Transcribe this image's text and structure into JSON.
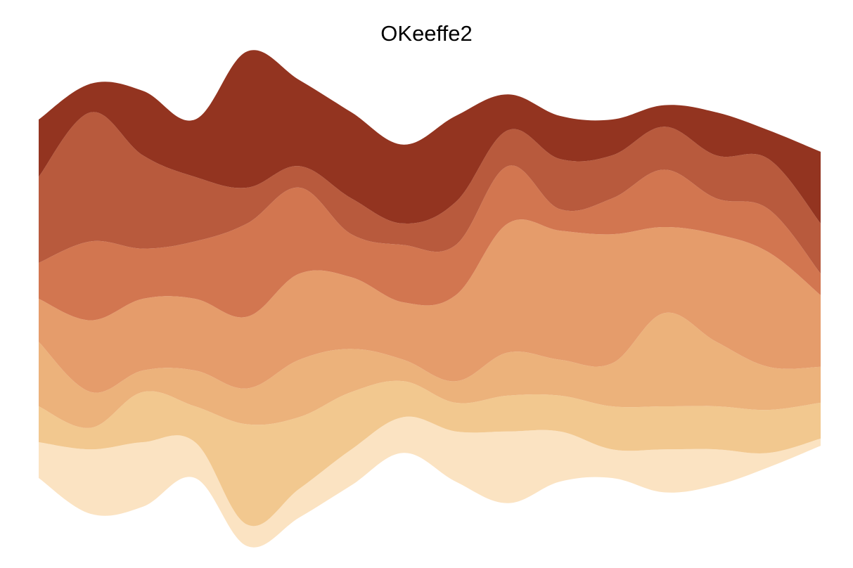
{
  "chart_data": {
    "type": "area",
    "title": "OKeeffe2",
    "layout": "streamgraph",
    "xlabel": "",
    "ylabel": "",
    "axes_visible": false,
    "grid": false,
    "legend": "none",
    "x": [
      0,
      1,
      2,
      3,
      4,
      5,
      6,
      7,
      8,
      9,
      10,
      11,
      12,
      13,
      14,
      15
    ],
    "series": [
      {
        "color": "#fbe3c2",
        "values": [
          5,
          9,
          9,
          5,
          3,
          4,
          5,
          5,
          7,
          10,
          7,
          4,
          6,
          5,
          2,
          1
        ]
      },
      {
        "color": "#f2c88f",
        "values": [
          5,
          3,
          7,
          5,
          14,
          10,
          8,
          5,
          4,
          5,
          5,
          6,
          6,
          6,
          6,
          5
        ]
      },
      {
        "color": "#ecb27b",
        "values": [
          9,
          5,
          3,
          5,
          5,
          8,
          6,
          3,
          3,
          6,
          5,
          6,
          13,
          9,
          6,
          5
        ]
      },
      {
        "color": "#e59c6b",
        "values": [
          6,
          10,
          10,
          10,
          10,
          12,
          10,
          8,
          12,
          18,
          18,
          18,
          12,
          15,
          16,
          10
        ]
      },
      {
        "color": "#d27650",
        "values": [
          5,
          11,
          7,
          8,
          13,
          12,
          6,
          8,
          7,
          8,
          3,
          5,
          8,
          5,
          6,
          3
        ]
      },
      {
        "color": "#b85a3d",
        "values": [
          12,
          18,
          13,
          9,
          5,
          3,
          5,
          3,
          6,
          5,
          7,
          6,
          6,
          6,
          7,
          7
        ]
      },
      {
        "color": "#933420",
        "values": [
          8,
          4,
          9,
          8,
          19,
          12,
          12,
          11,
          12,
          5,
          6,
          5,
          3,
          6,
          4,
          10
        ]
      }
    ]
  }
}
